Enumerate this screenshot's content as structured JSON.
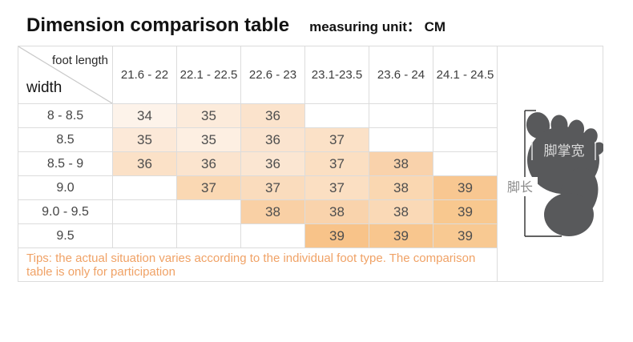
{
  "title": "Dimension comparison table",
  "unit_label": "measuring unit： CM",
  "table": {
    "corner_top": "foot length",
    "corner_bottom": "width",
    "columns": [
      "21.6 - 22",
      "22.1 - 22.5",
      "22.6 - 23",
      "23.1-23.5",
      "23.6 - 24",
      "24.1 - 24.5"
    ],
    "rows": [
      {
        "label": "8 - 8.5",
        "cells": [
          {
            "v": "34",
            "bg": "#fdf3ea"
          },
          {
            "v": "35",
            "bg": "#fcebdb"
          },
          {
            "v": "36",
            "bg": "#fbe3cc"
          },
          null,
          null,
          null
        ]
      },
      {
        "label": "8.5",
        "cells": [
          {
            "v": "35",
            "bg": "#fce9d8"
          },
          {
            "v": "35",
            "bg": "#fdefe2"
          },
          {
            "v": "36",
            "bg": "#fbe4cf"
          },
          {
            "v": "37",
            "bg": "#fbe1c7"
          },
          null,
          null
        ]
      },
      {
        "label": "8.5 - 9",
        "cells": [
          {
            "v": "36",
            "bg": "#fbe1c7"
          },
          {
            "v": "36",
            "bg": "#fbe4ce"
          },
          {
            "v": "36",
            "bg": "#fbe6d2"
          },
          {
            "v": "37",
            "bg": "#fbdfc2"
          },
          {
            "v": "38",
            "bg": "#f9d2ab"
          },
          null
        ]
      },
      {
        "label": "9.0",
        "cells": [
          null,
          {
            "v": "37",
            "bg": "#fad8b3"
          },
          {
            "v": "37",
            "bg": "#fadcbd"
          },
          {
            "v": "37",
            "bg": "#fbdfc2"
          },
          {
            "v": "38",
            "bg": "#fad7b1"
          },
          {
            "v": "39",
            "bg": "#f8c791"
          }
        ]
      },
      {
        "label": "9.0 - 9.5",
        "cells": [
          null,
          null,
          {
            "v": "38",
            "bg": "#f9d0a5"
          },
          {
            "v": "38",
            "bg": "#f9d3ac"
          },
          {
            "v": "38",
            "bg": "#fad9b6"
          },
          {
            "v": "39",
            "bg": "#f8c88f"
          }
        ]
      },
      {
        "label": "9.5",
        "cells": [
          null,
          null,
          null,
          {
            "v": "39",
            "bg": "#f8c389"
          },
          {
            "v": "39",
            "bg": "#f8c68e"
          },
          {
            "v": "39",
            "bg": "#f8c992"
          }
        ]
      }
    ],
    "tips": "Tips: the actual situation varies according to the individual foot type. The comparison table is only for participation"
  },
  "foot_diagram": {
    "width_label": "脚掌宽",
    "length_label": "脚长"
  },
  "colors": {
    "tips_text": "#f0a266",
    "foot": "#58595b",
    "grid_line": "#dcdcdc",
    "diagonal_line": "#c9c9c9",
    "bracket_line": "#2e2e2e",
    "foot_label_gray": "#8c8c8c",
    "foot_width_text": "#d9d9d9"
  },
  "chart_data": {
    "type": "table",
    "title": "Dimension comparison table",
    "unit": "CM",
    "col_header": "foot length",
    "row_header": "width",
    "columns": [
      "21.6 - 22",
      "22.1 - 22.5",
      "22.6 - 23",
      "23.1-23.5",
      "23.6 - 24",
      "24.1 - 24.5"
    ],
    "rows": [
      "8 - 8.5",
      "8.5",
      "8.5 - 9",
      "9.0",
      "9.0 - 9.5",
      "9.5"
    ],
    "values": [
      [
        34,
        35,
        36,
        null,
        null,
        null
      ],
      [
        35,
        35,
        36,
        37,
        null,
        null
      ],
      [
        36,
        36,
        36,
        37,
        38,
        null
      ],
      [
        null,
        37,
        37,
        37,
        38,
        39
      ],
      [
        null,
        null,
        38,
        38,
        38,
        39
      ],
      [
        null,
        null,
        null,
        39,
        39,
        39
      ]
    ],
    "note": "Tips: the actual situation varies according to the individual foot type. The comparison table is only for participation"
  }
}
